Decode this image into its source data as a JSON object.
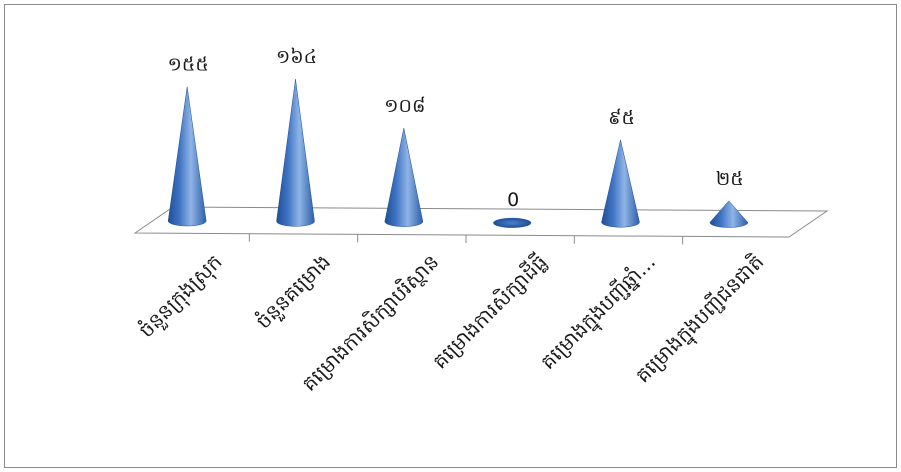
{
  "chart_data": {
    "type": "bar",
    "style": "3d-cone",
    "categories": [
      "ចំនួនក្រុងស្រុក",
      "ចំនួនគម្រោង",
      "គម្រោងការសិក្សាបរិស្ថាន",
      "គម្រោងការសិក្សាដីធ្លី",
      "គម្រោងក្នុងបញ្ជីឆ្នាំ...",
      "គម្រោងក្នុងបញ្ជីជនជាតិ"
    ],
    "values": [
      155,
      164,
      108,
      0,
      95,
      25
    ],
    "value_labels": [
      "១៥៥",
      "១៦៤",
      "១០៨",
      "0",
      "៩៥",
      "២៥"
    ],
    "ylim": [
      0,
      180
    ],
    "grid": false,
    "legend": "none",
    "colors": {
      "cone_light": "#8fb4e6",
      "cone_mid": "#3f74c4",
      "cone_dark": "#1f4f96",
      "floor_line": "#888888"
    }
  }
}
